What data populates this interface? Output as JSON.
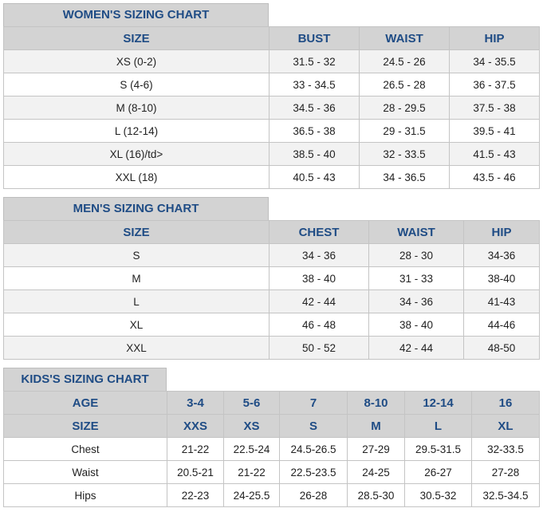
{
  "womens": {
    "title": "WOMEN'S SIZING CHART",
    "columns": [
      "SIZE",
      "BUST",
      "WAIST",
      "HIP"
    ],
    "rows": [
      [
        "XS (0-2)",
        "31.5 - 32",
        "24.5 - 26",
        "34 - 35.5"
      ],
      [
        "S (4-6)",
        "33 - 34.5",
        "26.5 - 28",
        "36 - 37.5"
      ],
      [
        "M (8-10)",
        "34.5 - 36",
        "28 - 29.5",
        "37.5 - 38"
      ],
      [
        "L (12-14)",
        "36.5 - 38",
        "29 - 31.5",
        "39.5 - 41"
      ],
      [
        "XL (16)/td>",
        "38.5 - 40",
        "32 - 33.5",
        "41.5 - 43"
      ],
      [
        "XXL (18)",
        "40.5 - 43",
        "34 - 36.5",
        "43.5 - 46"
      ]
    ]
  },
  "mens": {
    "title": "MEN'S SIZING CHART",
    "columns": [
      "SIZE",
      "CHEST",
      "WAIST",
      "HIP"
    ],
    "rows": [
      [
        "S",
        "34 - 36",
        "28 - 30",
        "34-36"
      ],
      [
        "M",
        "38 - 40",
        "31 - 33",
        "38-40"
      ],
      [
        "L",
        "42 - 44",
        "34 - 36",
        "41-43"
      ],
      [
        "XL",
        "46 - 48",
        "38 - 40",
        "44-46"
      ],
      [
        "XXL",
        "50 - 52",
        "42 - 44",
        "48-50"
      ]
    ]
  },
  "kids": {
    "title": "KIDS'S SIZING CHART",
    "header_rows": [
      [
        "AGE",
        "3-4",
        "5-6",
        "7",
        "8-10",
        "12-14",
        "16"
      ],
      [
        "SIZE",
        "XXS",
        "XS",
        "S",
        "M",
        "L",
        "XL"
      ]
    ],
    "rows": [
      [
        "Chest",
        "21-22",
        "22.5-24",
        "24.5-26.5",
        "27-29",
        "29.5-31.5",
        "32-33.5"
      ],
      [
        "Waist",
        "20.5-21",
        "21-22",
        "22.5-23.5",
        "24-25",
        "26-27",
        "27-28"
      ],
      [
        "Hips",
        "22-23",
        "24-25.5",
        "26-28",
        "28.5-30",
        "30.5-32",
        "32.5-34.5"
      ]
    ]
  }
}
